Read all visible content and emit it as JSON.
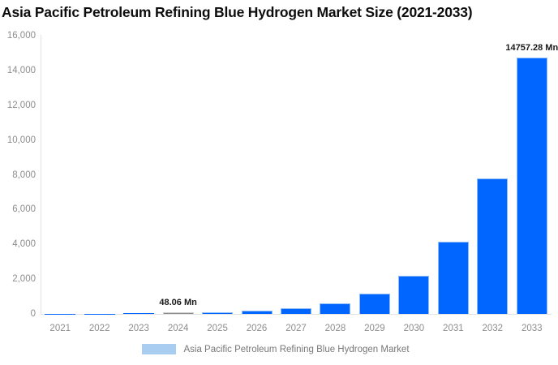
{
  "title": "Asia Pacific Petroleum Refining Blue Hydrogen Market Size (2021-2033)",
  "legend": {
    "label": "Asia Pacific Petroleum Refining Blue Hydrogen Market"
  },
  "colors": {
    "bar_fill": "#0066ff",
    "bar_border": "#90bdf8",
    "muted_bar_fill": "#8d8d8d",
    "muted_bar_border": "#cccccc",
    "axis_line": "#e2e2e2",
    "tick_text": "#8d8d8d",
    "annotation_text": "#1a1a1a",
    "legend_swatch": "#a9ccf1",
    "legend_text": "#777777"
  },
  "chart_data": {
    "type": "bar",
    "title": "Asia Pacific Petroleum Refining Blue Hydrogen Market Size (2021-2033)",
    "xlabel": "",
    "ylabel": "",
    "unit": "Mn",
    "categories": [
      "2021",
      "2022",
      "2023",
      "2024",
      "2025",
      "2026",
      "2027",
      "2028",
      "2029",
      "2030",
      "2031",
      "2032",
      "2033"
    ],
    "series": [
      {
        "name": "Asia Pacific Petroleum Refining Blue Hydrogen Market",
        "values": [
          7.12,
          13.46,
          25.44,
          48.06,
          90.81,
          171.58,
          324.19,
          612.55,
          1157.38,
          2186.82,
          4131.92,
          7807.07,
          14757.28
        ]
      }
    ],
    "labeled_values": {
      "2024": 48.06,
      "2033": 14757.28
    },
    "muted_category": "2024",
    "ylim": [
      0,
      16000
    ],
    "yticks": [
      0,
      2000,
      4000,
      6000,
      8000,
      10000,
      12000,
      14000,
      16000
    ],
    "ytick_labels": [
      "0",
      "2,000",
      "4,000",
      "6,000",
      "8,000",
      "10,000",
      "12,000",
      "14,000",
      "16,000"
    ],
    "grid": false,
    "legend_position": "bottom",
    "annotations": [
      {
        "category": "2024",
        "text": "48.06 Mn"
      },
      {
        "category": "2033",
        "text": "14757.28 Mn"
      }
    ]
  }
}
